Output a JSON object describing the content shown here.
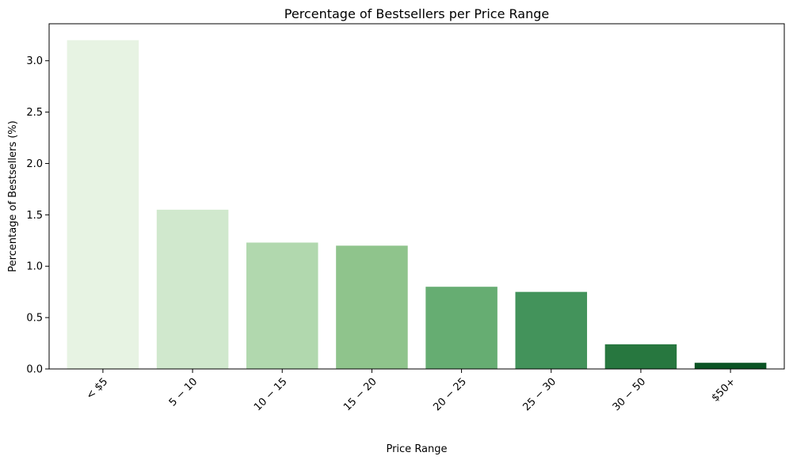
{
  "chart_data": {
    "type": "bar",
    "title": "Percentage of Bestsellers per Price Range",
    "xlabel": "Price Range",
    "ylabel": "Percentage of Bestsellers (%)",
    "categories": [
      "< $5",
      "5 − 10",
      "10 − 15",
      "15 − 20",
      "20 − 25",
      "25 − 30",
      "30 − 50",
      "$50+"
    ],
    "values": [
      3.2,
      1.55,
      1.23,
      1.2,
      0.8,
      0.75,
      0.24,
      0.06
    ],
    "ylim": [
      0,
      3.36
    ],
    "yticks": [
      0.0,
      0.5,
      1.0,
      1.5,
      2.0,
      2.5,
      3.0
    ],
    "ytick_labels": [
      "0.0",
      "0.5",
      "1.0",
      "1.5",
      "2.0",
      "2.5",
      "3.0"
    ],
    "colors": [
      "#e7f3e3",
      "#d0e8cd",
      "#b1d8ae",
      "#8fc48c",
      "#66ad72",
      "#43935b",
      "#27773f",
      "#0a5324"
    ],
    "grid": false,
    "legend": "none",
    "xtick_rotation": -45
  }
}
